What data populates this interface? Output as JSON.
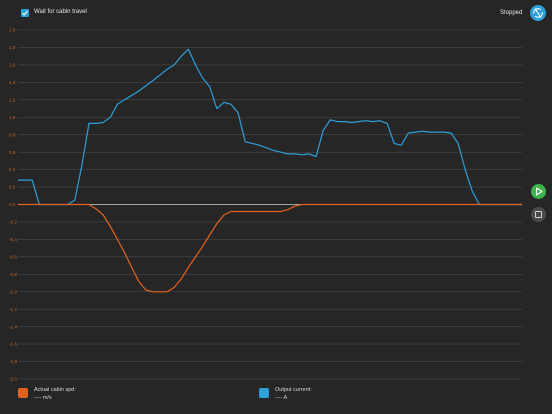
{
  "header": {
    "checkbox_label": "Wait for cabin travel",
    "checkbox_checked": true,
    "status": "Stopped"
  },
  "icons": {
    "checkbox": "check-icon",
    "sync": "sync-icon",
    "play": "play-icon",
    "stop": "stop-icon"
  },
  "colors": {
    "speed_series": "#e3621f",
    "current_series": "#2d9fd9",
    "play": "#3cb44b",
    "accent": "#2d9fd9"
  },
  "legend": [
    {
      "title": "Actual cabin spd:",
      "value": "---- m/s"
    },
    {
      "title": "Output current:",
      "value": "---- A"
    }
  ],
  "chart_data": {
    "type": "line",
    "ylim": [
      -2.0,
      2.0
    ],
    "ytick_labels": [
      "2.0",
      "1.8",
      "1.6",
      "1.4",
      "1.2",
      "1.0",
      "0.8",
      "0.6",
      "0.4",
      "0.2",
      "0.0",
      "-0.2",
      "-0.4",
      "-0.6",
      "-0.8",
      "-1.0",
      "-1.2",
      "-1.4",
      "-1.6",
      "-1.8",
      "-2.0"
    ],
    "grid": true,
    "series": [
      {
        "name": "Output current",
        "color": "#2d9fd9",
        "x": [
          0,
          2,
          3,
          4,
          5,
          7,
          8,
          9,
          10,
          11,
          12,
          13,
          14,
          15,
          17,
          19,
          21,
          22,
          23,
          24,
          25,
          26,
          27,
          28,
          29,
          30,
          31,
          32,
          33,
          34,
          35,
          36,
          37,
          38,
          39,
          40,
          41,
          42,
          43,
          44,
          45,
          46,
          47,
          48,
          49,
          50,
          51,
          52,
          53,
          54,
          55,
          56,
          57,
          58,
          59,
          60,
          61,
          62,
          63,
          64,
          65,
          66,
          67,
          68,
          69,
          70,
          71
        ],
        "y": [
          0.28,
          0.28,
          0.0,
          0.0,
          0.0,
          0.0,
          0.05,
          0.45,
          0.93,
          0.93,
          0.94,
          1.0,
          1.15,
          1.2,
          1.3,
          1.42,
          1.55,
          1.6,
          1.7,
          1.78,
          1.6,
          1.45,
          1.35,
          1.1,
          1.17,
          1.15,
          1.05,
          0.72,
          0.7,
          0.68,
          0.65,
          0.62,
          0.6,
          0.58,
          0.58,
          0.57,
          0.58,
          0.55,
          0.85,
          0.97,
          0.95,
          0.95,
          0.94,
          0.95,
          0.96,
          0.95,
          0.96,
          0.93,
          0.7,
          0.68,
          0.82,
          0.83,
          0.84,
          0.83,
          0.83,
          0.83,
          0.82,
          0.7,
          0.4,
          0.15,
          0.0,
          0.0,
          0.0,
          0.0,
          0.0,
          0.0,
          0.0
        ]
      },
      {
        "name": "Actual cabin spd",
        "color": "#e3621f",
        "x": [
          0,
          5,
          9,
          10,
          11,
          12,
          13,
          14,
          15,
          16,
          17,
          18,
          19,
          20,
          21,
          22,
          23,
          24,
          25,
          26,
          27,
          28,
          29,
          30,
          31,
          32,
          33,
          34,
          35,
          36,
          37,
          38,
          39,
          40,
          41,
          42,
          43,
          44,
          45,
          46,
          47,
          48,
          49,
          50,
          51,
          52,
          53,
          54,
          55,
          56,
          57,
          58,
          59,
          60,
          61,
          62,
          63,
          64,
          65,
          66,
          67,
          68,
          69,
          70,
          71
        ],
        "y": [
          0.0,
          0.0,
          0.0,
          0.0,
          -0.05,
          -0.12,
          -0.25,
          -0.4,
          -0.55,
          -0.72,
          -0.88,
          -0.98,
          -1.0,
          -1.0,
          -1.0,
          -0.95,
          -0.85,
          -0.72,
          -0.6,
          -0.48,
          -0.35,
          -0.22,
          -0.12,
          -0.08,
          -0.08,
          -0.08,
          -0.08,
          -0.08,
          -0.08,
          -0.08,
          -0.08,
          -0.06,
          -0.02,
          0.0,
          0.0,
          0.0,
          0.0,
          0.0,
          0.0,
          0.0,
          0.0,
          0.0,
          0.0,
          0.0,
          0.0,
          0.0,
          0.0,
          0.0,
          0.0,
          0.0,
          0.0,
          0.0,
          0.0,
          0.0,
          0.0,
          0.0,
          0.0,
          0.0,
          0.0,
          0.0,
          0.0,
          0.0,
          0.0,
          0.0,
          0.0
        ]
      }
    ]
  }
}
